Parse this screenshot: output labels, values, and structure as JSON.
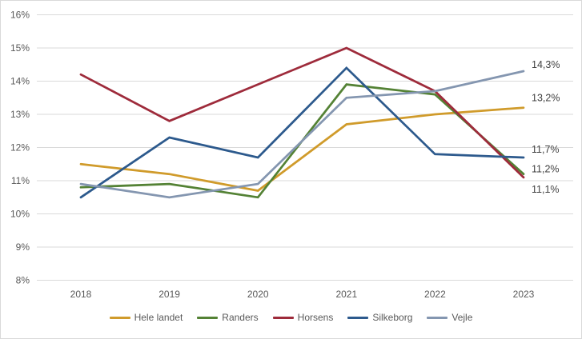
{
  "chart_data": {
    "type": "line",
    "title": "",
    "xlabel": "",
    "ylabel": "",
    "categories": [
      "2018",
      "2019",
      "2020",
      "2021",
      "2022",
      "2023"
    ],
    "y_ticks": [
      "8%",
      "9%",
      "10%",
      "11%",
      "12%",
      "13%",
      "14%",
      "15%",
      "16%"
    ],
    "ylim": [
      8,
      16
    ],
    "grid": "horizontal-only",
    "legend_position": "bottom",
    "series": [
      {
        "name": "Hele landet",
        "color": "#D09B2B",
        "values": [
          11.5,
          11.2,
          10.7,
          12.7,
          13.0,
          13.2
        ],
        "end_label": "13,2%",
        "label_dy": -8
      },
      {
        "name": "Randers",
        "color": "#548235",
        "values": [
          10.8,
          10.9,
          10.5,
          13.9,
          13.6,
          11.2
        ],
        "end_label": "11,2%",
        "label_dy": -2
      },
      {
        "name": "Horsens",
        "color": "#9E2B3B",
        "values": [
          14.2,
          12.8,
          13.9,
          15.0,
          13.7,
          11.1
        ],
        "end_label": "11,1%",
        "label_dy": 19
      },
      {
        "name": "Silkeborg",
        "color": "#2D5A8D",
        "values": [
          10.5,
          12.3,
          11.7,
          14.4,
          11.8,
          11.7
        ],
        "end_label": "11,7%",
        "label_dy": -6
      },
      {
        "name": "Vejle",
        "color": "#8496B0",
        "values": [
          10.9,
          10.5,
          10.9,
          13.5,
          13.7,
          14.3
        ],
        "end_label": "14,3%",
        "label_dy": -4
      }
    ]
  },
  "style_colors": {
    "gridline": "#D9D9D9",
    "tick_text": "#595959",
    "data_label_text": "#404040",
    "chart_border": "#D9D9D9",
    "background": "#FFFFFF"
  }
}
